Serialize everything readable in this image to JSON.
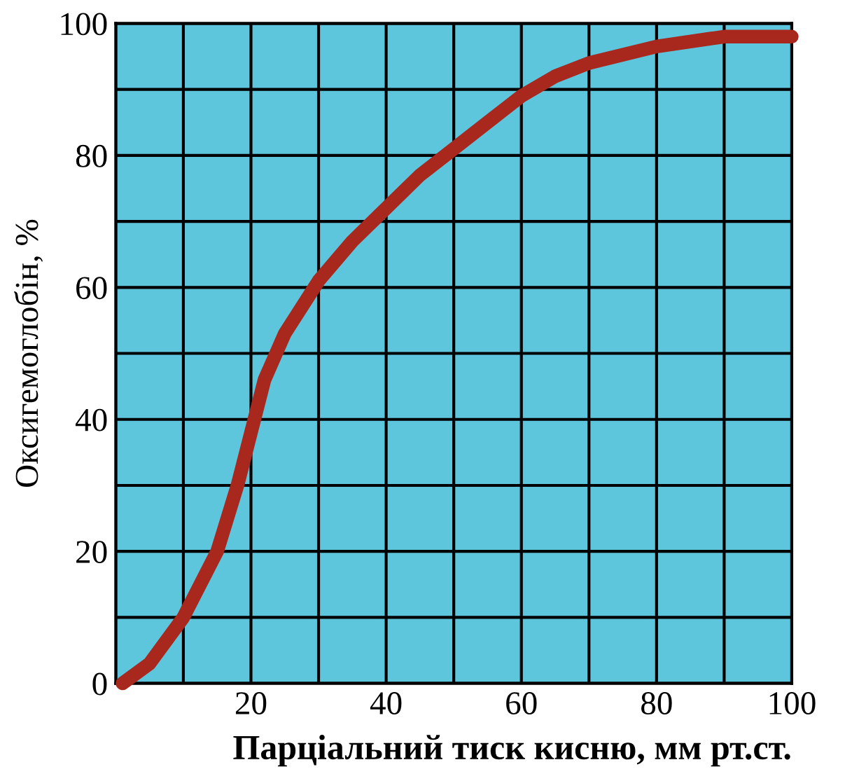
{
  "chart_data": {
    "type": "line",
    "xlabel": "Парціальний тиск кисню, мм рт.ст.",
    "ylabel": "Оксигемоглобін, %",
    "x": [
      1,
      5,
      10,
      15,
      18,
      20,
      22,
      25,
      30,
      35,
      40,
      45,
      50,
      55,
      60,
      65,
      70,
      80,
      90,
      100
    ],
    "series": [
      {
        "color": "#a8281e",
        "values": [
          0,
          3,
          10,
          20,
          30,
          38,
          46,
          53,
          61,
          67,
          72,
          77,
          81,
          85,
          89,
          92,
          94,
          96.5,
          98,
          98
        ]
      }
    ],
    "xlim": [
      0,
      100
    ],
    "ylim": [
      0,
      100
    ],
    "xticks": [
      {
        "value": 0,
        "label": null
      },
      {
        "value": 10,
        "label": null
      },
      20,
      {
        "value": 30,
        "label": null
      },
      40,
      {
        "value": 50,
        "label": null
      },
      60,
      {
        "value": 70,
        "label": null
      },
      80,
      {
        "value": 90,
        "label": null
      },
      100
    ],
    "yticks": [
      0,
      {
        "value": 10,
        "label": null
      },
      20,
      {
        "value": 30,
        "label": null
      },
      40,
      {
        "value": 50,
        "label": null
      },
      60,
      {
        "value": 70,
        "label": null
      },
      80,
      {
        "value": 90,
        "label": null
      },
      100
    ],
    "grid": true,
    "line_style": "solid"
  }
}
